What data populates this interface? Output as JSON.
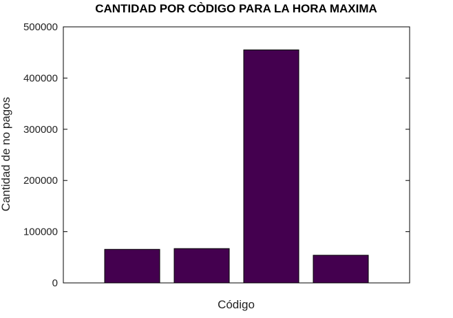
{
  "chart_data": {
    "type": "bar",
    "title": "CANTIDAD POR CÒDIGO PARA LA HORA MAXIMA",
    "xlabel": "Código",
    "ylabel": "Cantidad de no pagos",
    "categories": [
      "",
      "",
      "",
      ""
    ],
    "values": [
      65500,
      67000,
      455000,
      54000
    ],
    "ylim": [
      0,
      500000
    ],
    "yticks": [
      0,
      100000,
      200000,
      300000,
      400000,
      500000
    ],
    "ytick_labels": [
      "0",
      "100000",
      "200000",
      "300000",
      "400000",
      "500000"
    ],
    "bar_color": "#44004f",
    "grid": false,
    "legend": "none"
  }
}
